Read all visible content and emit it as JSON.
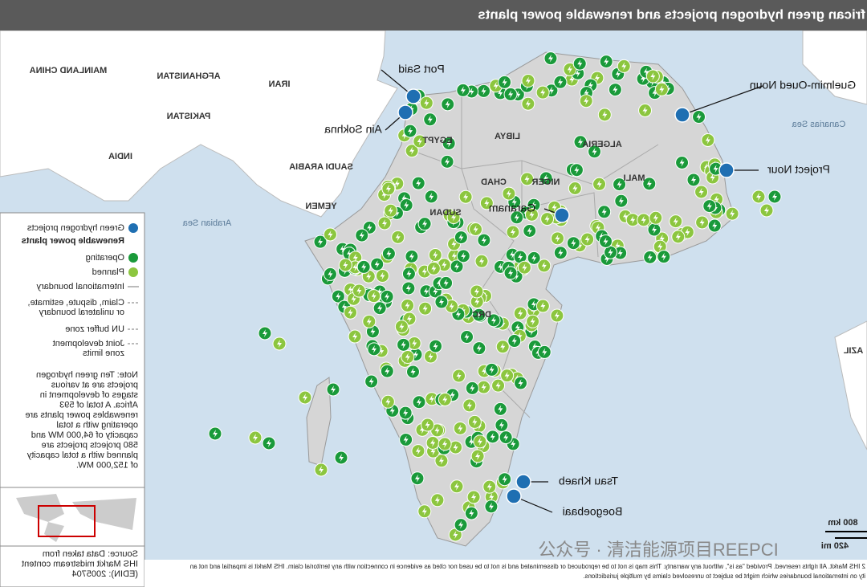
{
  "header": {
    "title": "frican green hydrogen projects and renewable power plants"
  },
  "map": {
    "countries": [
      "MAINLAND CHINA",
      "AFGHANISTAN",
      "IRAN",
      "PAKISTAN",
      "INDIA",
      "SAUDI ARABIA",
      "YEMEN",
      "EGYPT",
      "LIBYA",
      "ALGERIA",
      "CHAD",
      "NIGER",
      "MALI",
      "SUDAN",
      "DRC",
      "AZIL"
    ],
    "seas": [
      "Arabian Sea",
      "Canarias Sea"
    ],
    "projects": [
      "Port Said",
      "Ain Sokhna",
      "Guelmim-Oued Noun",
      "Project Nour",
      "Garanam",
      "Tsau Khaeb",
      "Boegoebaai"
    ]
  },
  "legend": {
    "items": [
      [
        "Green hydrogen projects"
      ],
      [
        "Renewable power plants"
      ],
      [
        "Operating"
      ],
      [
        "Planned"
      ],
      [
        "International boundary"
      ],
      [
        "Claim, dispute, estimate,",
        "or unilateral boundary"
      ],
      [
        "UN buffer zone"
      ],
      [
        "Joint development",
        "zone limits"
      ]
    ]
  },
  "note": [
    "Note: Ten green hydrogen",
    "projects are at various",
    "stages of development in",
    "Africa. A total of 593",
    "renewables power plants are",
    "operating with a total",
    "capacity of 64,000 MW and",
    "580 projects projects are",
    "planned with a total capacity",
    "of 152,000 MW."
  ],
  "source": [
    "Source: Data taken from",
    "IHS Markit midstream content",
    "(EDIN): 2005704"
  ],
  "scale": [
    "800 km",
    "420 mi"
  ],
  "footer": [
    "2 IHS Markit. All rights reserved. Provided \"as is\", without any warranty. This map is not to be reproduced or disseminated and is not to be used nor cited as evidence in connection with any territorial claim. IHS Markit is impartial and not an",
    "ity on international boundaries which might be subject to unresolved claims by multiple jurisdictions."
  ],
  "watermark": "公众号 · 清洁能源项目REEPCI"
}
